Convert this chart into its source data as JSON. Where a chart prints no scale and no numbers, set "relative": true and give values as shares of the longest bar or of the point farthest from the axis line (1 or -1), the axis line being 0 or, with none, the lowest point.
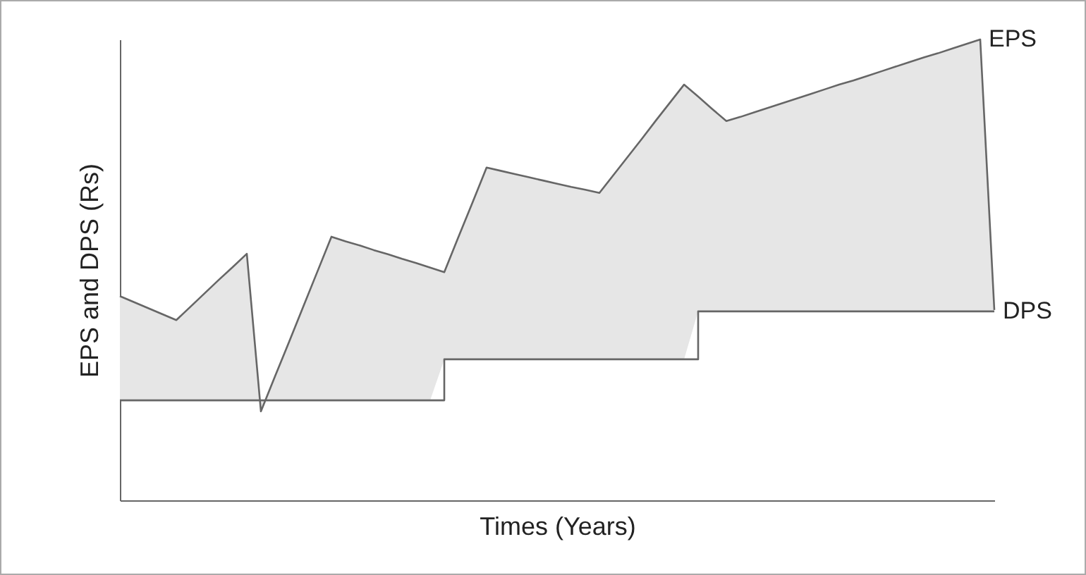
{
  "chart_data": {
    "type": "line",
    "relative": true,
    "xlabel": "Times (Years)",
    "ylabel": "EPS and DPS (Rs)",
    "tick_labels": false,
    "categories": [
      null,
      null,
      null,
      null,
      null,
      null,
      null,
      null,
      null,
      null,
      null,
      null,
      null,
      null,
      null,
      null,
      null,
      null,
      null,
      null,
      null,
      null,
      null,
      null,
      null,
      null,
      null,
      null,
      null,
      null,
      null,
      null,
      null,
      null,
      null,
      null,
      null,
      null,
      null,
      null,
      null,
      null,
      null,
      null,
      null,
      null,
      null,
      null,
      null,
      null,
      null,
      null,
      null,
      null,
      null,
      null,
      null,
      null,
      null,
      null,
      null,
      null,
      null
    ],
    "series": [
      {
        "name": "EPS",
        "type": "line",
        "color": "#666666",
        "values": [
          0.443,
          0.43,
          0.417,
          0.404,
          0.391,
          0.42,
          0.449,
          0.478,
          0.506,
          0.535,
          0.193,
          0.269,
          0.344,
          0.42,
          0.496,
          0.572,
          0.562,
          0.553,
          0.543,
          0.534,
          0.524,
          0.515,
          0.505,
          0.495,
          0.571,
          0.646,
          0.722,
          0.715,
          0.708,
          0.701,
          0.694,
          0.687,
          0.68,
          0.674,
          0.667,
          0.706,
          0.745,
          0.784,
          0.824,
          0.863,
          0.902,
          0.876,
          0.849,
          0.823,
          0.832,
          0.842,
          0.852,
          0.862,
          0.872,
          0.882,
          0.892,
          0.902,
          0.911,
          0.921,
          0.931,
          0.941,
          0.951,
          0.961,
          0.97,
          0.98,
          0.99,
          1,
          0.413
        ]
      },
      {
        "name": "DPS",
        "type": "step",
        "color": "#666666",
        "values": [
          0.217,
          0.217,
          0.217,
          0.217,
          0.217,
          0.217,
          0.217,
          0.217,
          0.217,
          0.217,
          0.217,
          0.217,
          0.217,
          0.217,
          0.217,
          0.217,
          0.217,
          0.217,
          0.217,
          0.217,
          0.217,
          0.217,
          0.217,
          0.306,
          0.306,
          0.306,
          0.306,
          0.306,
          0.306,
          0.306,
          0.306,
          0.306,
          0.306,
          0.306,
          0.306,
          0.306,
          0.306,
          0.306,
          0.306,
          0.306,
          0.306,
          0.41,
          0.41,
          0.41,
          0.41,
          0.41,
          0.41,
          0.41,
          0.41,
          0.41,
          0.41,
          0.41,
          0.41,
          0.41,
          0.41,
          0.41,
          0.41,
          0.41,
          0.41,
          0.41,
          0.41,
          0.41,
          0.41
        ]
      }
    ]
  }
}
